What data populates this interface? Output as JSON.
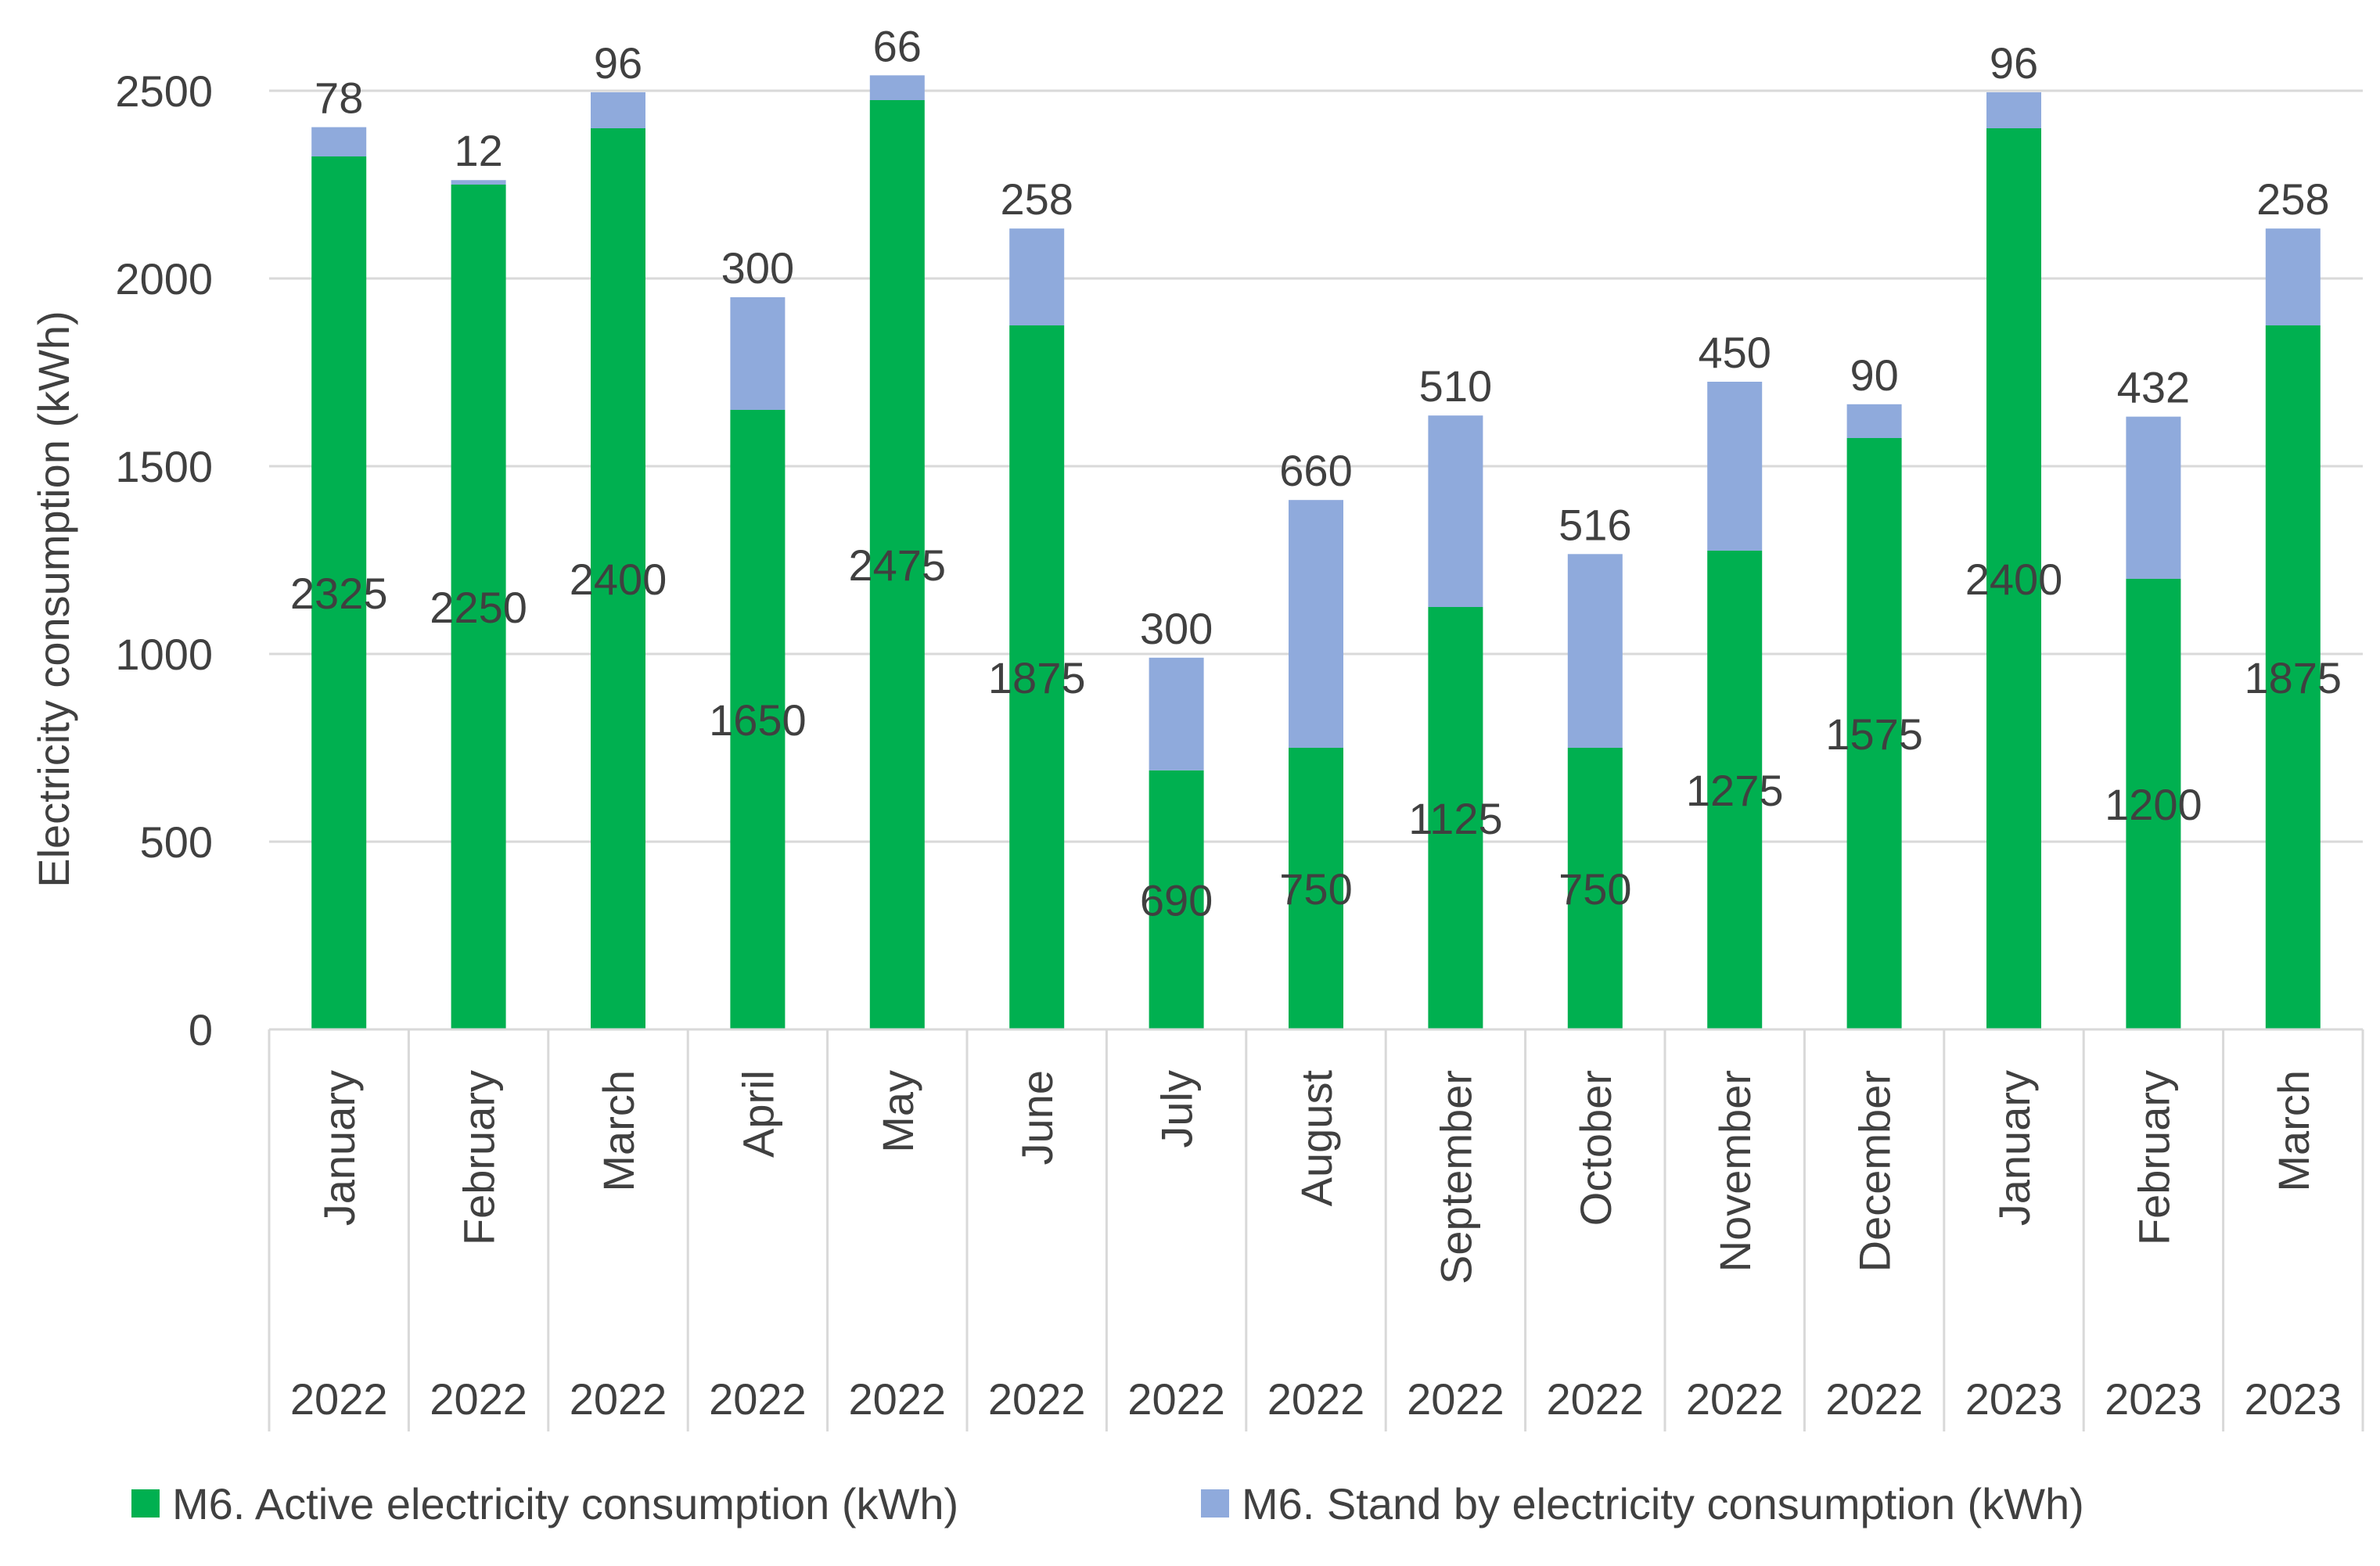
{
  "chart_data": {
    "type": "bar",
    "stacked": true,
    "title": "",
    "xlabel": "",
    "ylabel": "Electricity consumption (kWh)",
    "ylim": [
      0,
      2500
    ],
    "yticks": [
      0,
      500,
      1000,
      1500,
      2000,
      2500
    ],
    "grid": true,
    "legend_position": "bottom",
    "categories": [
      "January",
      "February",
      "March",
      "April",
      "May",
      "June",
      "July",
      "August",
      "September",
      "October",
      "November",
      "December",
      "January",
      "February",
      "March"
    ],
    "years": [
      "2022",
      "2022",
      "2022",
      "2022",
      "2022",
      "2022",
      "2022",
      "2022",
      "2022",
      "2022",
      "2022",
      "2022",
      "2023",
      "2023",
      "2023"
    ],
    "series": [
      {
        "name": "M6. Active electricity consumption (kWh)",
        "color": "#00b050",
        "values": [
          2325,
          2250,
          2400,
          1650,
          2475,
          1875,
          690,
          750,
          1125,
          750,
          1275,
          1575,
          2400,
          1200,
          1875
        ]
      },
      {
        "name": "M6. Stand by electricity consumption (kWh)",
        "color": "#8faadc",
        "values": [
          78,
          12,
          96,
          300,
          66,
          258,
          300,
          660,
          510,
          516,
          450,
          90,
          96,
          432,
          258
        ]
      }
    ]
  }
}
